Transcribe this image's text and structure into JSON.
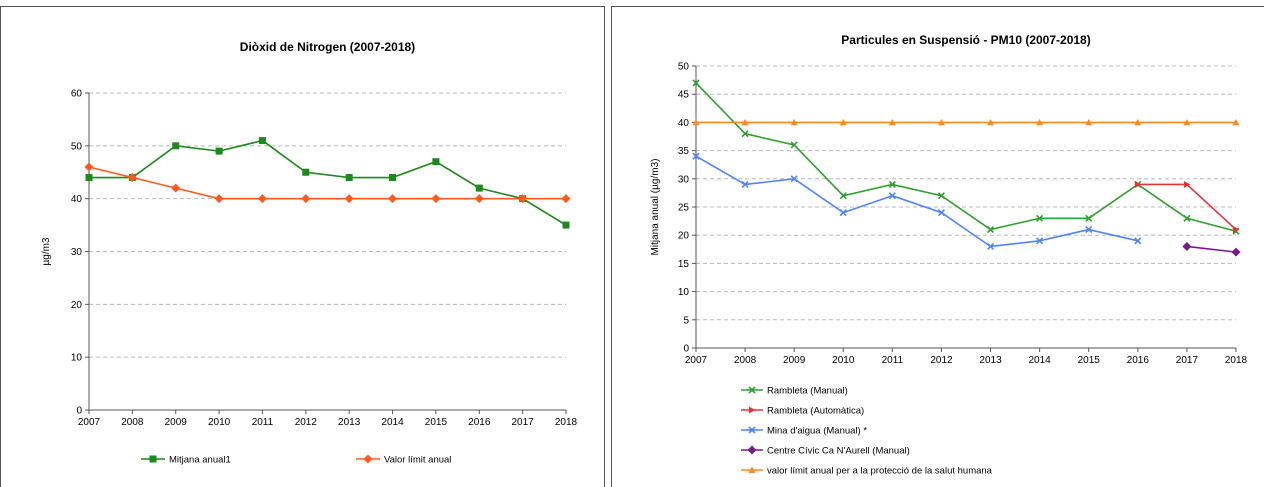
{
  "chart_data": [
    {
      "type": "line",
      "title": "Diòxid de Nitrogen (2007-2018)",
      "xlabel": "",
      "ylabel": "µg/m3",
      "x": [
        "2007",
        "2008",
        "2009",
        "2010",
        "2011",
        "2012",
        "2013",
        "2014",
        "2015",
        "2016",
        "2017",
        "2018"
      ],
      "ylim": [
        0,
        60
      ],
      "yticks": [
        0,
        10,
        20,
        30,
        40,
        50,
        60
      ],
      "grid": true,
      "legend_position": "bottom",
      "series": [
        {
          "name": "Mitjana anual1",
          "color": "#1a8a1a",
          "marker": "square",
          "values": [
            44,
            44,
            50,
            49,
            51,
            45,
            44,
            44,
            47,
            42,
            40,
            35
          ]
        },
        {
          "name": "Valor límit anual",
          "color": "#ff5a1e",
          "marker": "diamond",
          "values": [
            46,
            44,
            42,
            40,
            40,
            40,
            40,
            40,
            40,
            40,
            40,
            40
          ]
        }
      ]
    },
    {
      "type": "line",
      "title": "Particules en Suspensió - PM10 (2007-2018)",
      "xlabel": "",
      "ylabel": "Mitjana anual (µg/m3)",
      "x": [
        "2007",
        "2008",
        "2009",
        "2010",
        "2011",
        "2012",
        "2013",
        "2014",
        "2015",
        "2016",
        "2017",
        "2018"
      ],
      "ylim": [
        0,
        50
      ],
      "yticks": [
        0,
        5,
        10,
        15,
        20,
        25,
        30,
        35,
        40,
        45,
        50
      ],
      "grid": true,
      "legend_position": "bottom",
      "series": [
        {
          "name": "Rambleta (Manual)",
          "color": "#2ca02c",
          "marker": "x",
          "values": [
            47,
            38,
            36,
            27,
            29,
            27,
            21,
            23,
            23,
            29,
            23,
            20.7
          ]
        },
        {
          "name": "Rambleta (Automàtica)",
          "color": "#e8303a",
          "marker": "triangle-right",
          "values": [
            null,
            null,
            null,
            null,
            null,
            null,
            null,
            null,
            null,
            29,
            29,
            21
          ]
        },
        {
          "name": "Mina d'aigua (Manual) *",
          "color": "#4f82ff",
          "marker": "x",
          "values": [
            34,
            29,
            30,
            24,
            27,
            24,
            18,
            19,
            21,
            19,
            null,
            null
          ]
        },
        {
          "name": "Centre Cívic Ca N'Aurell (Manual)",
          "color": "#7a1a8a",
          "marker": "diamond",
          "values": [
            null,
            null,
            null,
            null,
            null,
            null,
            null,
            null,
            null,
            null,
            18,
            17
          ]
        },
        {
          "name": "valor límit anual per a la protecció de la salut humana",
          "color": "#ff8a1e",
          "marker": "triangle-up",
          "values": [
            40,
            40,
            40,
            40,
            40,
            40,
            40,
            40,
            40,
            40,
            40,
            40
          ]
        }
      ]
    }
  ]
}
